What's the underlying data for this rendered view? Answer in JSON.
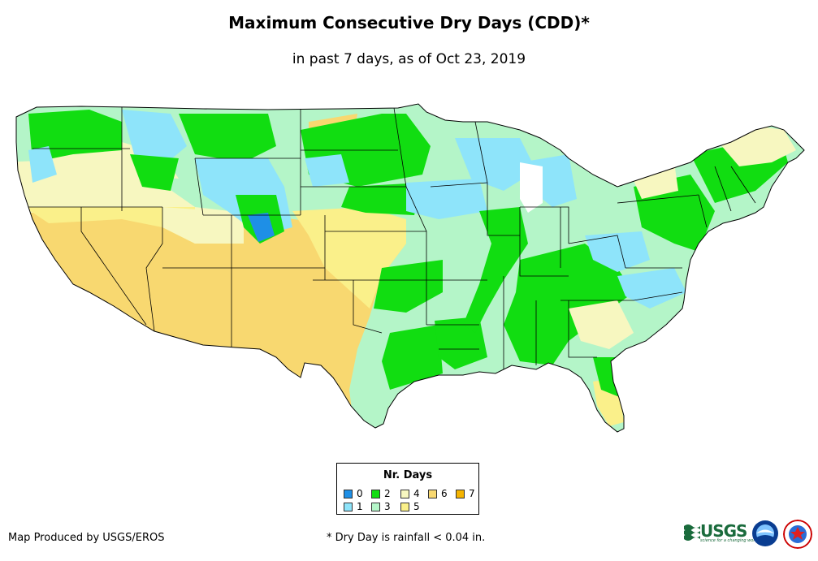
{
  "title": "Maximum Consecutive Dry Days (CDD)*",
  "subtitle": "in past 7 days, as of Oct 23, 2019",
  "legend": {
    "title": "Nr. Days",
    "items": [
      {
        "label": "0",
        "color": "#1e8fe6"
      },
      {
        "label": "1",
        "color": "#8ee4fa"
      },
      {
        "label": "2",
        "color": "#11dd11"
      },
      {
        "label": "3",
        "color": "#b4f5c8"
      },
      {
        "label": "4",
        "color": "#f7f7c0"
      },
      {
        "label": "5",
        "color": "#faf08a"
      },
      {
        "label": "6",
        "color": "#f8d870"
      },
      {
        "label": "7",
        "color": "#f5b400"
      }
    ]
  },
  "credit": "Map Produced by USGS/EROS",
  "footnote": "* Dry Day is rainfall < 0.04 in.",
  "logos": {
    "usgs": "USGS",
    "usgs_tagline": "science for a changing world",
    "noaa": "NOAA",
    "nws": "National Weather Service"
  }
}
